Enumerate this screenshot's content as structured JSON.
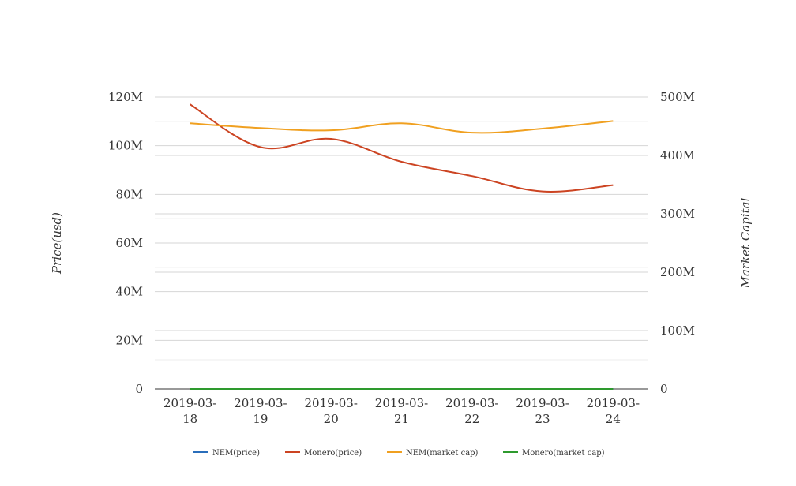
{
  "chart_data": {
    "type": "line",
    "categories": [
      [
        "2019-03-",
        "18"
      ],
      [
        "2019-03-",
        "19"
      ],
      [
        "2019-03-",
        "20"
      ],
      [
        "2019-03-",
        "21"
      ],
      [
        "2019-03-",
        "22"
      ],
      [
        "2019-03-",
        "23"
      ],
      [
        "2019-03-",
        "24"
      ]
    ],
    "left_axis": {
      "label": "Price(usd)",
      "range": [
        0,
        120000000
      ],
      "ticks": [
        0,
        20000000,
        40000000,
        60000000,
        80000000,
        100000000,
        120000000
      ],
      "tick_labels": [
        "0",
        "20M",
        "40M",
        "60M",
        "80M",
        "100M",
        "120M"
      ]
    },
    "right_axis": {
      "label": "Market Capital",
      "range": [
        0,
        500000000
      ],
      "ticks": [
        0,
        100000000,
        200000000,
        300000000,
        400000000,
        500000000
      ],
      "tick_labels": [
        "0",
        "100M",
        "200M",
        "300M",
        "400M",
        "500M"
      ]
    },
    "series": [
      {
        "name": "NEM(price)",
        "axis": "left",
        "color": "#2a6ebb",
        "values": [
          0.07,
          0.07,
          0.07,
          0.07,
          0.07,
          0.07,
          0.07
        ]
      },
      {
        "name": "Monero(price)",
        "axis": "left",
        "color": "#cc4422",
        "values": [
          117000000,
          99400000,
          102800000,
          93400000,
          87500000,
          81200000,
          83800000
        ]
      },
      {
        "name": "NEM(market cap)",
        "axis": "right",
        "color": "#f0a020",
        "values": [
          455000000,
          447000000,
          443000000,
          455000000,
          439000000,
          446000000,
          459000000
        ]
      },
      {
        "name": "Monero(market cap)",
        "axis": "right",
        "color": "#2e9a2e",
        "values": [
          0,
          0,
          0,
          0,
          0,
          0,
          0
        ]
      }
    ],
    "legend_position": "bottom-center",
    "grid": true
  }
}
